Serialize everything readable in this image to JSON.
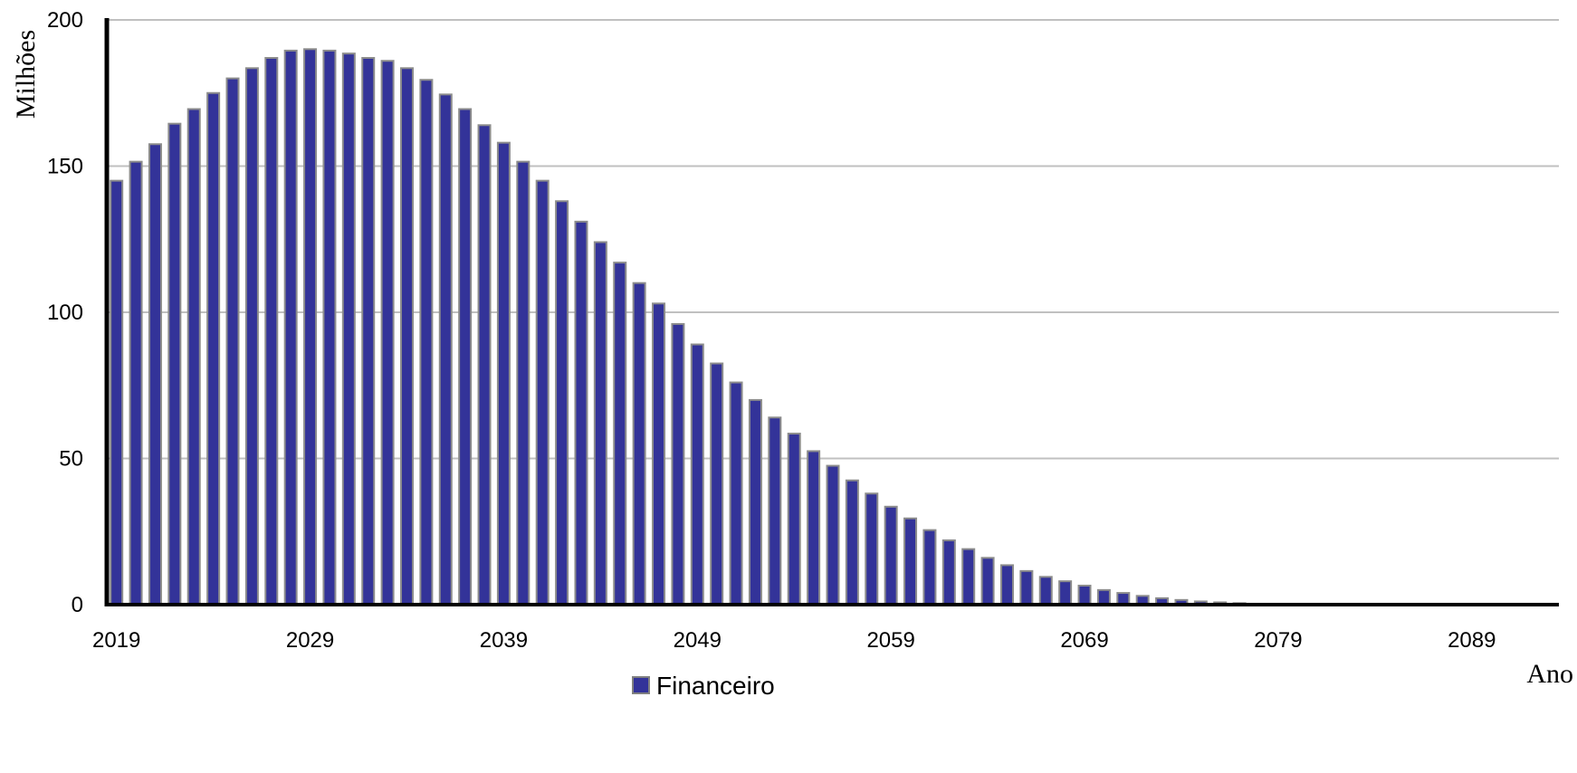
{
  "chart_data": {
    "type": "bar",
    "ylabel": "Milhões",
    "xlabel": "Ano",
    "ylim": [
      0,
      200
    ],
    "yticks": [
      0,
      50,
      100,
      150,
      200
    ],
    "x_tick_labels": [
      "2019",
      "2029",
      "2039",
      "2049",
      "2059",
      "2069",
      "2079",
      "2089"
    ],
    "grid": true,
    "legend_position": "bottom-center",
    "series": [
      {
        "name": "Financeiro",
        "color": "#333399",
        "x": [
          2019,
          2020,
          2021,
          2022,
          2023,
          2024,
          2025,
          2026,
          2027,
          2028,
          2029,
          2030,
          2031,
          2032,
          2033,
          2034,
          2035,
          2036,
          2037,
          2038,
          2039,
          2040,
          2041,
          2042,
          2043,
          2044,
          2045,
          2046,
          2047,
          2048,
          2049,
          2050,
          2051,
          2052,
          2053,
          2054,
          2055,
          2056,
          2057,
          2058,
          2059,
          2060,
          2061,
          2062,
          2063,
          2064,
          2065,
          2066,
          2067,
          2068,
          2069,
          2070,
          2071,
          2072,
          2073,
          2074,
          2075,
          2076,
          2077,
          2078,
          2079,
          2080,
          2081,
          2082,
          2083,
          2084,
          2085,
          2086,
          2087,
          2088,
          2089,
          2090,
          2091,
          2092,
          2093
        ],
        "values": [
          145,
          151.5,
          157.5,
          164.5,
          169.5,
          175,
          180,
          183.5,
          187,
          189.5,
          190,
          189.5,
          188.5,
          187,
          186,
          183.5,
          179.5,
          174.5,
          169.5,
          164,
          158,
          151.5,
          145,
          138,
          131,
          124,
          117,
          110,
          103,
          96,
          89,
          82.5,
          76,
          70,
          64,
          58.5,
          52.5,
          47.5,
          42.5,
          38,
          33.5,
          29.5,
          25.5,
          22,
          19,
          16,
          13.5,
          11.5,
          9.5,
          8,
          6.5,
          5,
          4,
          3,
          2.2,
          1.6,
          1.1,
          0.8,
          0.5,
          0.3,
          0.2,
          0.15,
          0.1,
          0.1,
          0.05,
          0.05,
          0.05,
          0.05,
          0.05,
          0.05,
          0.05,
          0.05,
          0.05,
          0.05,
          0.05
        ]
      }
    ]
  }
}
